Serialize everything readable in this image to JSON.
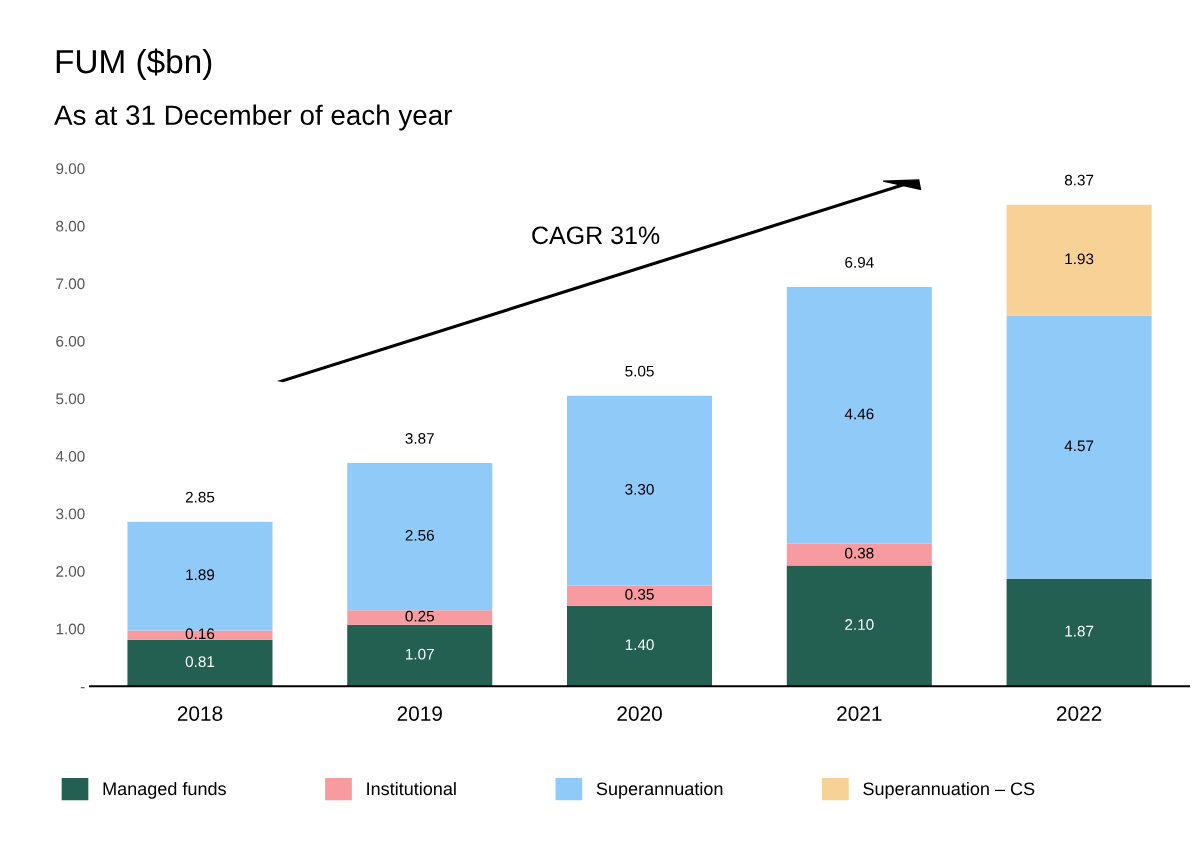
{
  "chart_data": {
    "type": "bar",
    "title": "FUM ($bn)",
    "subtitle": "As at 31 December of each year",
    "categories": [
      "2018",
      "2019",
      "2020",
      "2021",
      "2022"
    ],
    "stacked": true,
    "series": [
      {
        "name": "Managed funds",
        "color": "#236052",
        "values": [
          0.81,
          1.07,
          1.4,
          2.1,
          1.87
        ],
        "value_labels": [
          "0.81",
          "1.07",
          "1.40",
          "2.10",
          "1.87"
        ]
      },
      {
        "name": "Institutional",
        "color": "#f79ba0",
        "values": [
          0.16,
          0.25,
          0.35,
          0.38,
          null
        ],
        "value_labels": [
          "0.16",
          "0.25",
          "0.35",
          "0.38",
          null
        ]
      },
      {
        "name": "Superannuation",
        "color": "#90caf9",
        "values": [
          1.89,
          2.56,
          3.3,
          4.46,
          4.57
        ],
        "value_labels": [
          "1.89",
          "2.56",
          "3.30",
          "4.46",
          "4.57"
        ]
      },
      {
        "name": "Superannuation – CS",
        "color": "#f8d196",
        "values": [
          null,
          null,
          null,
          null,
          1.93
        ],
        "value_labels": [
          null,
          null,
          null,
          null,
          "1.93"
        ]
      }
    ],
    "totals": [
      "2.85",
      "3.87",
      "5.05",
      "6.94",
      "8.37"
    ],
    "ylim": [
      0,
      9
    ],
    "yticks": [
      {
        "value": 0,
        "label": "-"
      },
      {
        "value": 1,
        "label": "1.00"
      },
      {
        "value": 2,
        "label": "2.00"
      },
      {
        "value": 3,
        "label": "3.00"
      },
      {
        "value": 4,
        "label": "4.00"
      },
      {
        "value": 5,
        "label": "5.00"
      },
      {
        "value": 6,
        "label": "6.00"
      },
      {
        "value": 7,
        "label": "7.00"
      },
      {
        "value": 8,
        "label": "8.00"
      },
      {
        "value": 9,
        "label": "9.00"
      }
    ],
    "annotations": [
      "CAGR 31%"
    ],
    "grid": false,
    "legend": "bottom"
  }
}
